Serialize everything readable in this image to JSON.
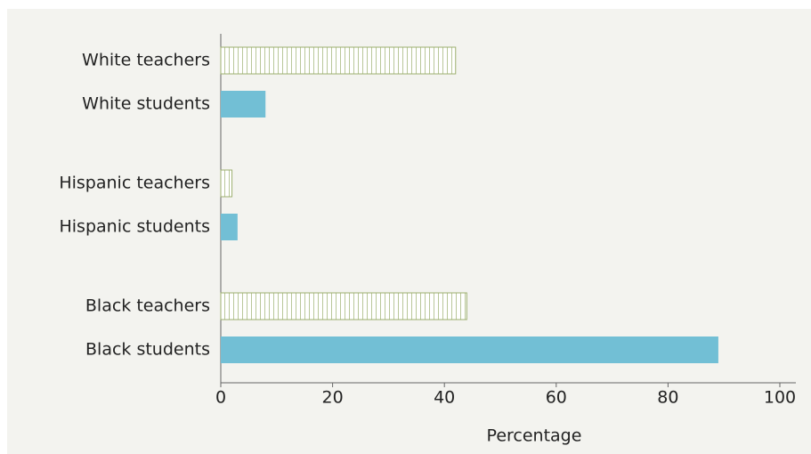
{
  "chart_data": {
    "type": "bar",
    "orientation": "horizontal",
    "categories": [
      "White teachers",
      "White students",
      "Hispanic teachers",
      "Hispanic students",
      "Black teachers",
      "Black students"
    ],
    "values": [
      42,
      8,
      2,
      3,
      44,
      89
    ],
    "colors": [
      "#9caf6f",
      "#72bfd5",
      "#9caf6f",
      "#72bfd5",
      "#9caf6f",
      "#72bfd5"
    ],
    "hatched": [
      true,
      false,
      true,
      false,
      true,
      false
    ],
    "xlabel": "Percentage",
    "xlim": [
      0,
      100
    ],
    "xticks": [
      0,
      20,
      40,
      60,
      80,
      100
    ],
    "grid": false
  }
}
